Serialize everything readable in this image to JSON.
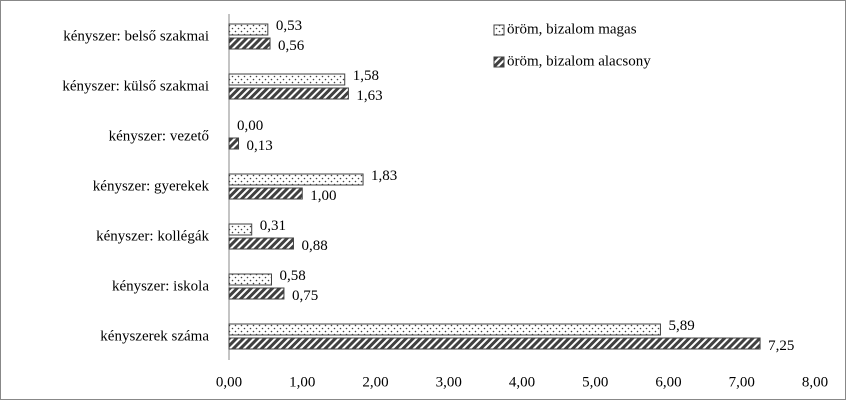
{
  "chart_data": {
    "type": "hbar",
    "categories": [
      "kényszer: belső szakmai",
      "kényszer: külső szakmai",
      "kényszer: vezető",
      "kényszer: gyerekek",
      "kényszer: kollégák",
      "kényszer: iskola",
      "kényszerek száma"
    ],
    "series": [
      {
        "name": "öröm, bizalom magas",
        "color": "#404040",
        "pattern": "dots",
        "values": [
          0.53,
          1.58,
          0.0,
          1.83,
          0.31,
          0.58,
          5.89
        ],
        "value_labels": [
          "0,53",
          "1,58",
          "0,00",
          "1,83",
          "0,31",
          "0,58",
          "5,89"
        ]
      },
      {
        "name": "öröm, bizalom alacsony",
        "color": "#404040",
        "pattern": "hatch",
        "values": [
          0.56,
          1.63,
          0.13,
          1.0,
          0.88,
          0.75,
          7.25
        ],
        "value_labels": [
          "0,56",
          "1,63",
          "0,13",
          "1,00",
          "0,88",
          "0,75",
          "7,25"
        ]
      }
    ],
    "xlim": [
      0,
      8
    ],
    "xticks": [
      {
        "value": 0,
        "label": "0,00"
      },
      {
        "value": 1,
        "label": "1,00"
      },
      {
        "value": 2,
        "label": "2,00"
      },
      {
        "value": 3,
        "label": "3,00"
      },
      {
        "value": 4,
        "label": "4,00"
      },
      {
        "value": 5,
        "label": "5,00"
      },
      {
        "value": 6,
        "label": "6,00"
      },
      {
        "value": 7,
        "label": "7,00"
      },
      {
        "value": 8,
        "label": "8,00"
      }
    ],
    "legend": "top-right"
  }
}
